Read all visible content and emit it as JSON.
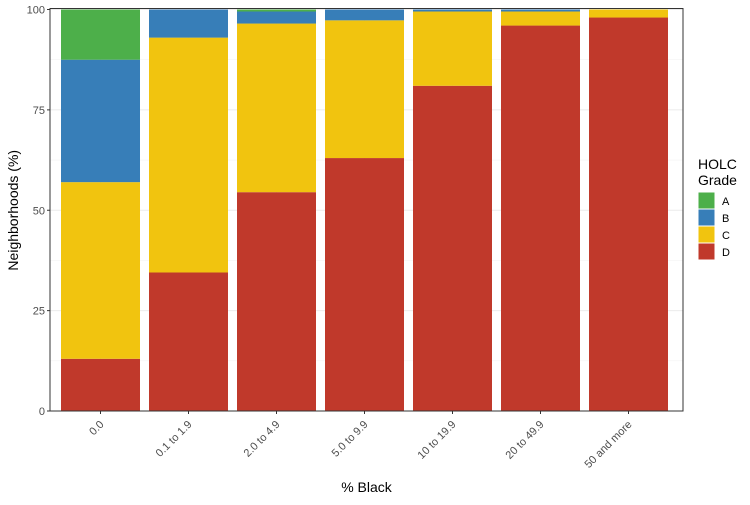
{
  "chart_data": {
    "type": "bar",
    "stacked": true,
    "title": "",
    "xlabel": "% Black",
    "ylabel": "Neighborhoods (%)",
    "ylim": [
      0,
      100
    ],
    "yticks": [
      "0",
      "25",
      "50",
      "75",
      "100"
    ],
    "categories": [
      "0.0",
      "0.1 to 1.9",
      "2.0 to 4.9",
      "5.0 to 9.9",
      "10 to 19.9",
      "20 to 49.9",
      "50 and more"
    ],
    "legend_title": "HOLC Grade",
    "legend_position": "right",
    "series": [
      {
        "name": "D",
        "color": "#C0392B",
        "values": [
          13,
          34.5,
          54.5,
          63,
          81,
          96,
          98
        ]
      },
      {
        "name": "C",
        "color": "#F1C40F",
        "values": [
          44,
          58.5,
          42,
          34.3,
          18.5,
          3.5,
          2
        ]
      },
      {
        "name": "B",
        "color": "#377EB8",
        "values": [
          30.5,
          7,
          3,
          2.7,
          0.5,
          0.5,
          0
        ]
      },
      {
        "name": "A",
        "color": "#4DAF4A",
        "values": [
          12.5,
          0,
          0.5,
          0,
          0,
          0,
          0
        ]
      }
    ]
  }
}
